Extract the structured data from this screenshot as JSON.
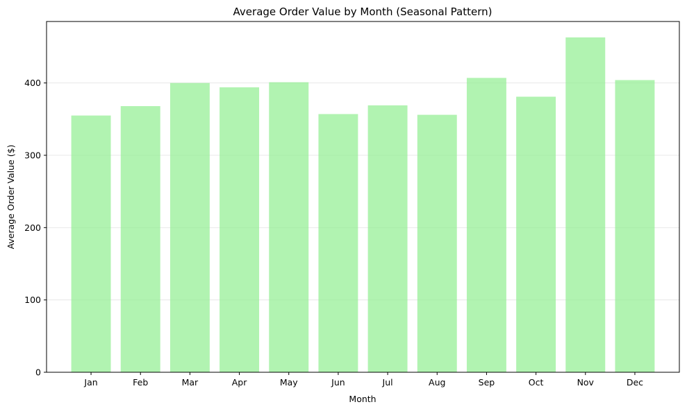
{
  "chart_data": {
    "type": "bar",
    "title": "Average Order Value by Month (Seasonal Pattern)",
    "xlabel": "Month",
    "ylabel": "Average Order Value ($)",
    "categories": [
      "Jan",
      "Feb",
      "Mar",
      "Apr",
      "May",
      "Jun",
      "Jul",
      "Aug",
      "Sep",
      "Oct",
      "Nov",
      "Dec"
    ],
    "values": [
      355,
      368,
      400,
      394,
      401,
      357,
      369,
      356,
      407,
      381,
      463,
      404
    ],
    "ylim": [
      0,
      485
    ],
    "yticks": [
      0,
      100,
      200,
      300,
      400
    ],
    "grid": "y-axis",
    "legend": "none",
    "bar_color": "#90ee90",
    "bar_opacity": 0.7
  }
}
